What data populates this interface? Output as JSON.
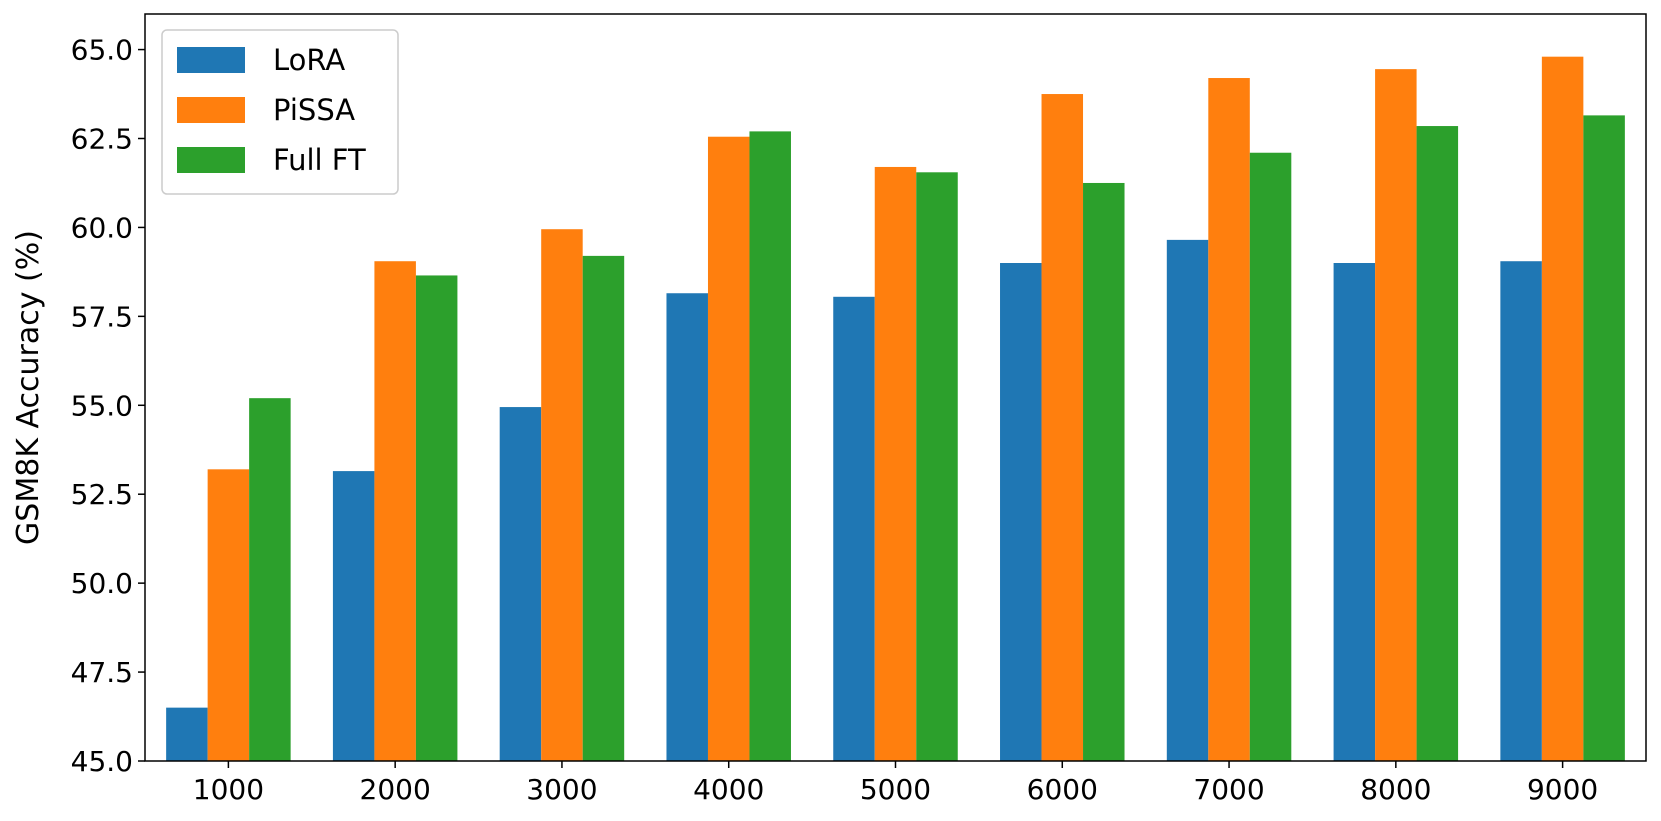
{
  "chart_data": {
    "type": "bar",
    "title": "",
    "xlabel": "",
    "ylabel": "GSM8K Accuracy (%)",
    "ylim": [
      45.0,
      66.0
    ],
    "yticks": [
      "45.0",
      "47.5",
      "50.0",
      "52.5",
      "55.0",
      "57.5",
      "60.0",
      "62.5",
      "65.0"
    ],
    "categories": [
      "1000",
      "2000",
      "3000",
      "4000",
      "5000",
      "6000",
      "7000",
      "8000",
      "9000"
    ],
    "legend_position": "top-left",
    "grid": false,
    "series": [
      {
        "name": "LoRA",
        "color": "#1f77b4",
        "values": [
          46.5,
          53.15,
          54.95,
          58.15,
          58.05,
          59.0,
          59.65,
          59.0,
          59.05
        ]
      },
      {
        "name": "PiSSA",
        "color": "#ff7f0e",
        "values": [
          53.2,
          59.05,
          59.95,
          62.55,
          61.7,
          63.75,
          64.2,
          64.45,
          64.8
        ]
      },
      {
        "name": "Full FT",
        "color": "#2ca02c",
        "values": [
          55.2,
          58.65,
          59.2,
          62.7,
          61.55,
          61.25,
          62.1,
          62.85,
          63.15
        ]
      }
    ]
  }
}
